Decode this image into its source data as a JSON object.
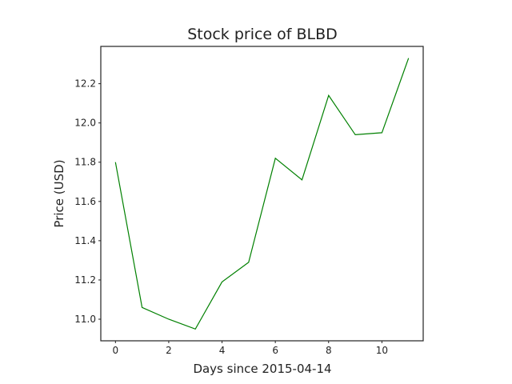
{
  "chart_data": {
    "type": "line",
    "title": "Stock price of BLBD",
    "xlabel": "Days since 2015-04-14",
    "ylabel": "Price (USD)",
    "x": [
      0,
      1,
      2,
      3,
      4,
      5,
      6,
      7,
      8,
      9,
      10,
      11
    ],
    "series": [
      {
        "values": [
          11.8,
          11.06,
          11.0,
          10.95,
          11.19,
          11.29,
          11.82,
          11.71,
          12.14,
          11.94,
          11.95,
          12.33
        ],
        "color": "#008000"
      }
    ],
    "xlim": [
      -0.55,
      11.55
    ],
    "ylim": [
      10.89,
      12.39
    ],
    "xticks": [
      0,
      2,
      4,
      6,
      8,
      10
    ],
    "yticks": [
      11.0,
      11.2,
      11.4,
      11.6,
      11.8,
      12.0,
      12.2
    ],
    "xtick_labels": [
      "0",
      "2",
      "4",
      "6",
      "8",
      "10"
    ],
    "ytick_labels": [
      "11.0",
      "11.2",
      "11.4",
      "11.6",
      "11.8",
      "12.0",
      "12.2"
    ],
    "grid": false,
    "legend": "none"
  }
}
